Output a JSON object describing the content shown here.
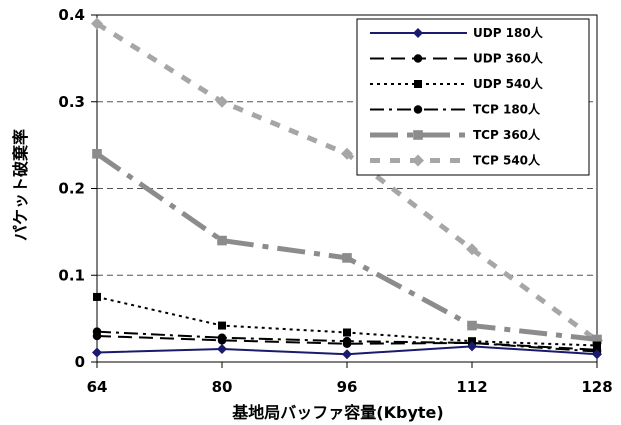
{
  "chart_data": {
    "type": "line",
    "xlabel": "基地局バッファ容量(Kbyte)",
    "ylabel": "パケット破棄率",
    "x": [
      64,
      80,
      96,
      112,
      128
    ],
    "xlim": [
      64,
      128
    ],
    "ylim": [
      0,
      0.4
    ],
    "x_ticks": [
      "64",
      "80",
      "96",
      "112",
      "128"
    ],
    "y_ticks": [
      "0",
      "0.1",
      "0.2",
      "0.3",
      "0.4"
    ],
    "grid": "horizontal dashed",
    "legend_position": "top-right",
    "series": [
      {
        "name": "UDP 180人",
        "values": [
          0.011,
          0.015,
          0.009,
          0.018,
          0.009
        ],
        "color": "#1a1a6e",
        "style": "solid",
        "marker": "diamond"
      },
      {
        "name": "UDP 360人",
        "values": [
          0.03,
          0.025,
          0.021,
          0.022,
          0.014
        ],
        "color": "#000000",
        "style": "long-dash",
        "marker": "circle"
      },
      {
        "name": "UDP 540人",
        "values": [
          0.075,
          0.042,
          0.034,
          0.024,
          0.019
        ],
        "color": "#000000",
        "style": "dotted",
        "marker": "square"
      },
      {
        "name": "TCP 180人",
        "values": [
          0.035,
          0.028,
          0.024,
          0.022,
          0.012
        ],
        "color": "#000000",
        "style": "dash-dot",
        "marker": "circle"
      },
      {
        "name": "TCP 360人",
        "values": [
          0.24,
          0.14,
          0.12,
          0.042,
          0.026
        ],
        "color": "#8c8c8c",
        "style": "long-dash-dot",
        "marker": "square"
      },
      {
        "name": "TCP 540人",
        "values": [
          0.39,
          0.3,
          0.24,
          0.13,
          0.025
        ],
        "color": "#a6a6a6",
        "style": "dash",
        "marker": "diamond"
      }
    ]
  }
}
